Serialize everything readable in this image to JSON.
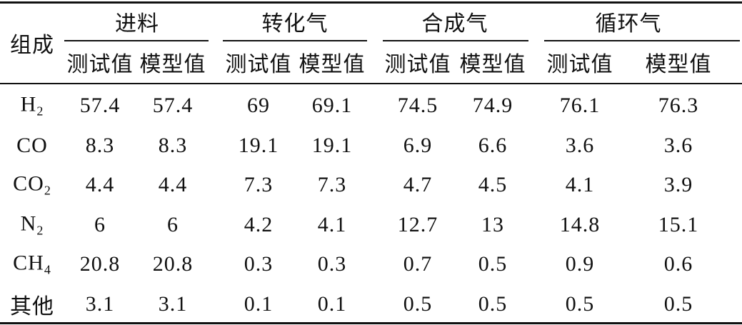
{
  "table": {
    "corner": "组成",
    "groups": [
      {
        "title": "进料",
        "columns": [
          "测试值",
          "模型值"
        ]
      },
      {
        "title": "转化气",
        "columns": [
          "测试值",
          "模型值"
        ]
      },
      {
        "title": "合成气",
        "columns": [
          "测试值",
          "模型值"
        ]
      },
      {
        "title": "循环气",
        "columns": [
          "测试值",
          "模型值"
        ]
      }
    ],
    "rows": [
      {
        "component": "H",
        "sub": "2",
        "values": [
          57.4,
          57.4,
          69,
          69.1,
          74.5,
          74.9,
          76.1,
          76.3
        ]
      },
      {
        "component": "CO",
        "values": [
          8.3,
          8.3,
          19.1,
          19.1,
          6.9,
          6.6,
          3.6,
          3.6
        ]
      },
      {
        "component": "CO",
        "sub": "2",
        "values": [
          4.4,
          4.4,
          7.3,
          7.3,
          4.7,
          4.5,
          4.1,
          3.9
        ]
      },
      {
        "component": "N",
        "sub": "2",
        "values": [
          6,
          6,
          4.2,
          4.1,
          12.7,
          13,
          14.8,
          15.1
        ]
      },
      {
        "component": "CH",
        "sub": "4",
        "values": [
          20.8,
          20.8,
          0.3,
          0.3,
          0.7,
          0.5,
          0.9,
          0.6
        ]
      },
      {
        "component": "其他",
        "values": [
          3.1,
          3.1,
          0.1,
          0.1,
          0.5,
          0.5,
          0.5,
          0.5
        ]
      }
    ]
  }
}
